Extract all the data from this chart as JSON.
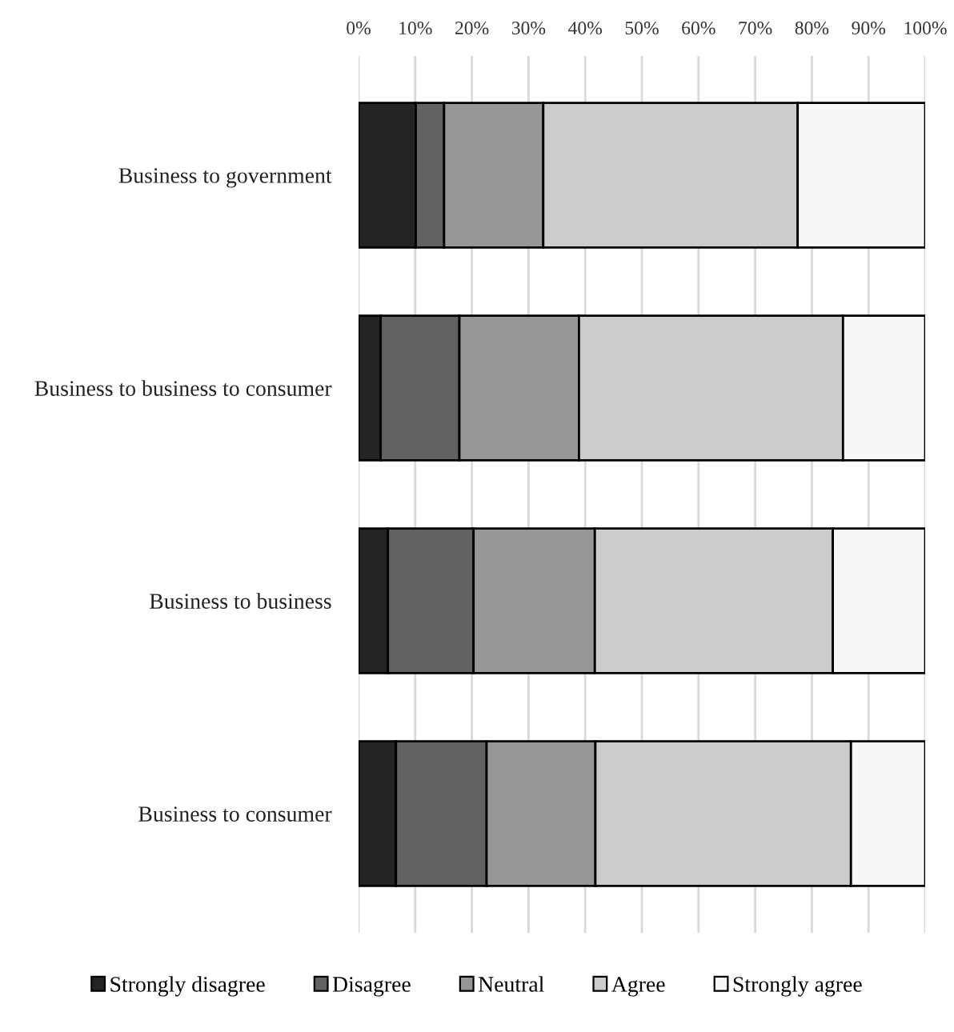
{
  "chart_data": {
    "type": "bar",
    "orientation": "horizontal",
    "stacked": true,
    "categories": [
      "Business to government",
      "Business to business to consumer",
      "Business to business",
      "Business to consumer"
    ],
    "series": [
      {
        "name": "Strongly disagree",
        "color": "#242424",
        "values": [
          10.1,
          3.9,
          5.2,
          6.6
        ]
      },
      {
        "name": "Disagree",
        "color": "#626262",
        "values": [
          5.0,
          13.9,
          15.1,
          16.0
        ]
      },
      {
        "name": "Neutral",
        "color": "#979797",
        "values": [
          17.5,
          21.1,
          21.4,
          19.2
        ]
      },
      {
        "name": "Agree",
        "color": "#cccccc",
        "values": [
          44.9,
          46.6,
          42.0,
          45.1
        ]
      },
      {
        "name": "Strongly agree",
        "color": "#f7f7f7",
        "values": [
          22.5,
          14.5,
          16.3,
          13.1
        ]
      }
    ],
    "xlim": [
      0,
      100
    ],
    "xticks": [
      {
        "value": 0,
        "label": "0%"
      },
      {
        "value": 10,
        "label": "10%"
      },
      {
        "value": 20,
        "label": "20%"
      },
      {
        "value": 30,
        "label": "30%"
      },
      {
        "value": 40,
        "label": "40%"
      },
      {
        "value": 50,
        "label": "50%"
      },
      {
        "value": 60,
        "label": "60%"
      },
      {
        "value": 70,
        "label": "70%"
      },
      {
        "value": 80,
        "label": "80%"
      },
      {
        "value": 90,
        "label": "90%"
      },
      {
        "value": 100,
        "label": "100%"
      }
    ],
    "grid": "x",
    "legend": "bottom"
  }
}
